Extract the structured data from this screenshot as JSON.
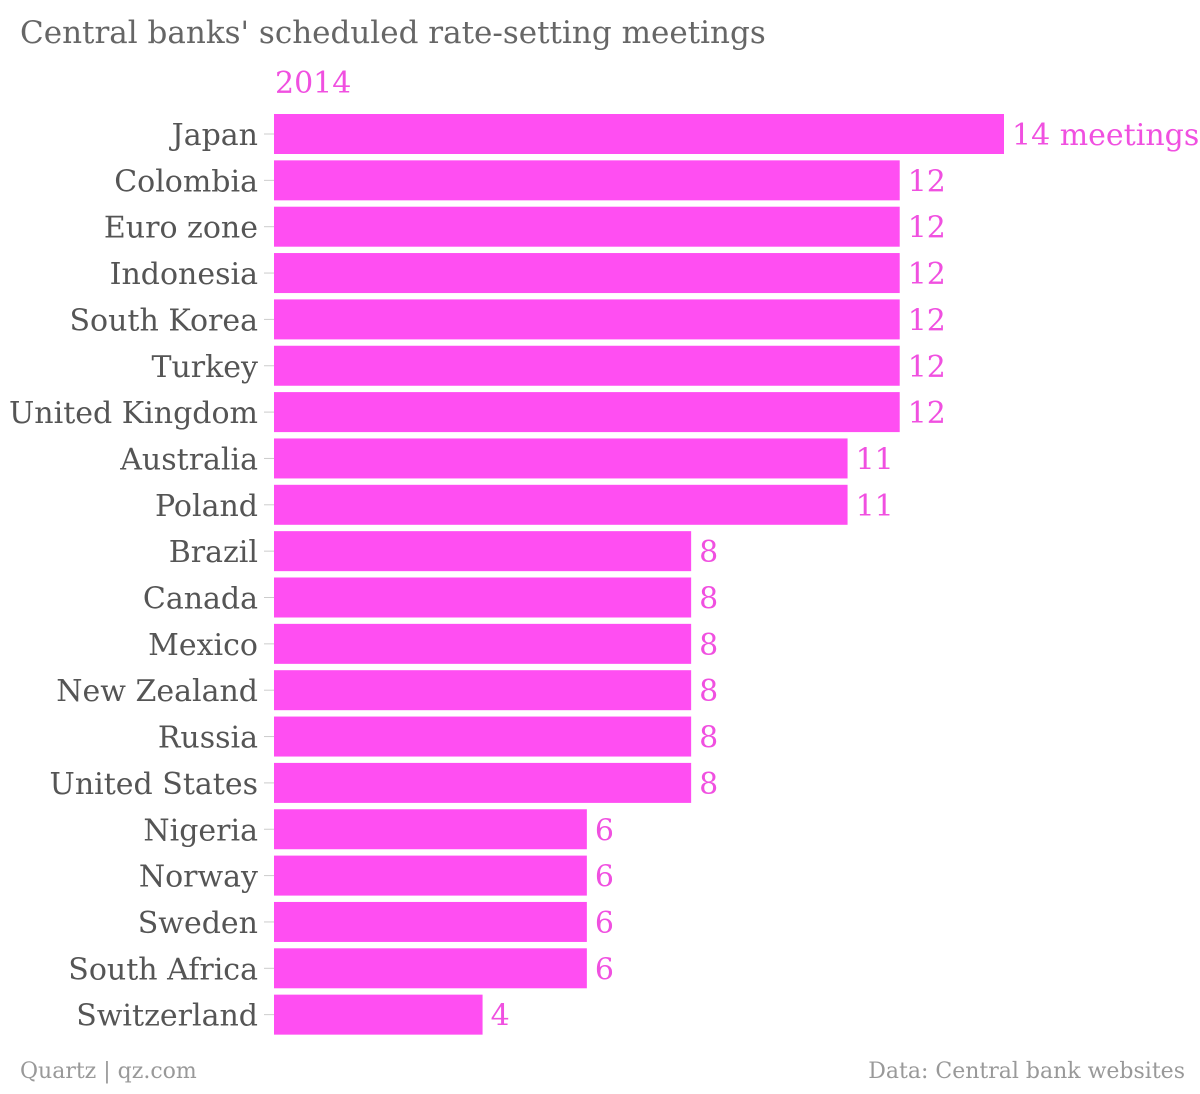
{
  "chart_data": {
    "type": "bar",
    "orientation": "horizontal",
    "title": "Central banks' scheduled rate-setting meetings",
    "series": [
      {
        "name": "2014",
        "values": [
          14,
          12,
          12,
          12,
          12,
          12,
          12,
          11,
          11,
          8,
          8,
          8,
          8,
          8,
          8,
          6,
          6,
          6,
          6,
          4
        ]
      }
    ],
    "categories": [
      "Japan",
      "Colombia",
      "Euro zone",
      "Indonesia",
      "South Korea",
      "Turkey",
      "United Kingdom",
      "Australia",
      "Poland",
      "Brazil",
      "Canada",
      "Mexico",
      "New Zealand",
      "Russia",
      "United States",
      "Nigeria",
      "Norway",
      "Sweden",
      "South Africa",
      "Switzerland"
    ],
    "value_labels": [
      "14 meetings",
      "12",
      "12",
      "12",
      "12",
      "12",
      "12",
      "11",
      "11",
      "8",
      "8",
      "8",
      "8",
      "8",
      "8",
      "6",
      "6",
      "6",
      "6",
      "4"
    ],
    "xlim": [
      0,
      14
    ],
    "grid": false,
    "legend": "top-left",
    "bar_color": "#ff4ef2",
    "label_color": "#f050e0"
  },
  "footer": {
    "source_left": "Quartz | qz.com",
    "source_right": "Data: Central bank websites"
  }
}
